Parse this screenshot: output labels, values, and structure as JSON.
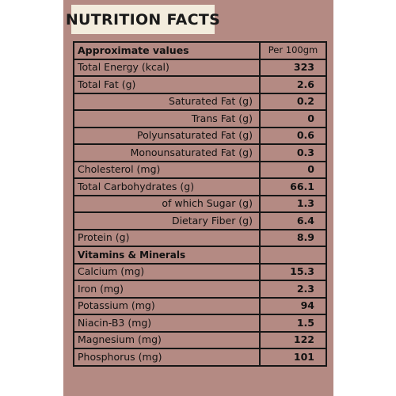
{
  "title": "NUTRITION FACTS",
  "header": {
    "label": "Approximate values",
    "value": "Per 100gm"
  },
  "rows": [
    {
      "label": "Total Energy (kcal)",
      "value": "323"
    },
    {
      "label": "Total Fat (g)",
      "value": "2.6"
    },
    {
      "label": "Saturated Fat (g)",
      "value": "0.2"
    },
    {
      "label": "Trans Fat (g)",
      "value": "0"
    },
    {
      "label": "Polyunsaturated Fat (g)",
      "value": "0.6"
    },
    {
      "label": "Monounsaturated Fat (g)",
      "value": "0.3"
    },
    {
      "label": "Cholesterol (mg)",
      "value": "0"
    },
    {
      "label": "Total Carbohydrates (g)",
      "value": "66.1"
    },
    {
      "label": "of which Sugar (g)",
      "value": "1.3"
    },
    {
      "label": "Dietary Fiber (g)",
      "value": "6.4"
    },
    {
      "label": "Protein (g)",
      "value": "8.9"
    },
    {
      "label": "Vitamins & Minerals",
      "value": ""
    },
    {
      "label": "Calcium (mg)",
      "value": "15.3"
    },
    {
      "label": "Iron (mg)",
      "value": "2.3"
    },
    {
      "label": "Potassium (mg)",
      "value": "94"
    },
    {
      "label": "Niacin-B3 (mg)",
      "value": "1.5"
    },
    {
      "label": "Magnesium (mg)",
      "value": "122"
    },
    {
      "label": "Phosphorus (mg)",
      "value": "101"
    }
  ]
}
